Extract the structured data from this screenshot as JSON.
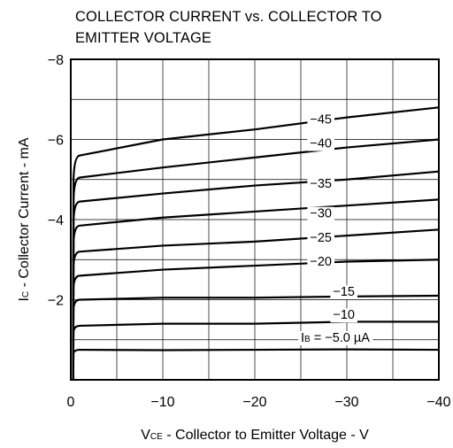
{
  "chart_data": {
    "type": "line",
    "title_lines": [
      "COLLECTOR CURRENT vs. COLLECTOR TO",
      "EMITTER VOLTAGE"
    ],
    "xlabel": {
      "main": "V",
      "sub": "CE",
      "rest": " - Collector to Emitter Voltage - V"
    },
    "ylabel": {
      "main": "I",
      "sub": "C",
      "rest": " - Collector Current - mA"
    },
    "xlim": [
      0,
      -40
    ],
    "ylim": [
      0,
      -8
    ],
    "x_ticks": [
      {
        "value": 0,
        "label": "0"
      },
      {
        "value": -10,
        "label": "−10"
      },
      {
        "value": -20,
        "label": "−20"
      },
      {
        "value": -30,
        "label": "−30"
      },
      {
        "value": -40,
        "label": "−40"
      }
    ],
    "y_ticks": [
      {
        "value": -2,
        "label": "−2"
      },
      {
        "value": -4,
        "label": "−4"
      },
      {
        "value": -6,
        "label": "−6"
      },
      {
        "value": -8,
        "label": "−8"
      }
    ],
    "grid": true,
    "series": [
      {
        "label": "I",
        "label_sub": "B",
        "label_rest": " = −5.0 µA",
        "label_at": [
          -25,
          -0.95
        ],
        "sat": -0.75,
        "points": [
          [
            0,
            -0.7
          ],
          [
            -10,
            -0.74
          ],
          [
            -20,
            -0.75
          ],
          [
            -30,
            -0.76
          ],
          [
            -40,
            -0.75
          ]
        ]
      },
      {
        "label": "−10",
        "label_at": [
          -28.5,
          -1.52
        ],
        "sat": -1.35,
        "points": [
          [
            0,
            -1.35
          ],
          [
            -10,
            -1.4
          ],
          [
            -20,
            -1.4
          ],
          [
            -30,
            -1.45
          ],
          [
            -40,
            -1.45
          ]
        ]
      },
      {
        "label": "−15",
        "label_at": [
          -28.5,
          -2.1
        ],
        "sat": -2.0,
        "points": [
          [
            0,
            -2.0
          ],
          [
            -10,
            -2.05
          ],
          [
            -20,
            -2.05
          ],
          [
            -30,
            -2.08
          ],
          [
            -40,
            -2.1
          ]
        ]
      },
      {
        "label": "−20",
        "label_at": [
          -26,
          -2.85
        ],
        "sat": -2.6,
        "points": [
          [
            0,
            -2.6
          ],
          [
            -10,
            -2.75
          ],
          [
            -20,
            -2.85
          ],
          [
            -30,
            -2.95
          ],
          [
            -40,
            -3.0
          ]
        ]
      },
      {
        "label": "−25",
        "label_at": [
          -26,
          -3.45
        ],
        "sat": -3.2,
        "points": [
          [
            0,
            -3.2
          ],
          [
            -10,
            -3.35
          ],
          [
            -20,
            -3.45
          ],
          [
            -30,
            -3.6
          ],
          [
            -40,
            -3.75
          ]
        ]
      },
      {
        "label": "−30",
        "label_at": [
          -26,
          -4.05
        ],
        "sat": -3.85,
        "points": [
          [
            0,
            -3.85
          ],
          [
            -10,
            -4.05
          ],
          [
            -20,
            -4.2
          ],
          [
            -30,
            -4.35
          ],
          [
            -40,
            -4.5
          ]
        ]
      },
      {
        "label": "−35",
        "label_at": [
          -26,
          -4.8
        ],
        "sat": -4.45,
        "points": [
          [
            0,
            -4.45
          ],
          [
            -10,
            -4.65
          ],
          [
            -20,
            -4.85
          ],
          [
            -30,
            -5.0
          ],
          [
            -40,
            -5.2
          ]
        ]
      },
      {
        "label": "−40",
        "label_at": [
          -26,
          -5.8
        ],
        "sat": -5.05,
        "points": [
          [
            0,
            -5.05
          ],
          [
            -10,
            -5.3
          ],
          [
            -20,
            -5.55
          ],
          [
            -30,
            -5.8
          ],
          [
            -40,
            -6.0
          ]
        ]
      },
      {
        "label": "−45",
        "label_at": [
          -26,
          -6.4
        ],
        "sat": -5.6,
        "points": [
          [
            0,
            -5.65
          ],
          [
            -10,
            -6.0
          ],
          [
            -20,
            -6.25
          ],
          [
            -30,
            -6.55
          ],
          [
            -40,
            -6.8
          ]
        ]
      }
    ]
  }
}
